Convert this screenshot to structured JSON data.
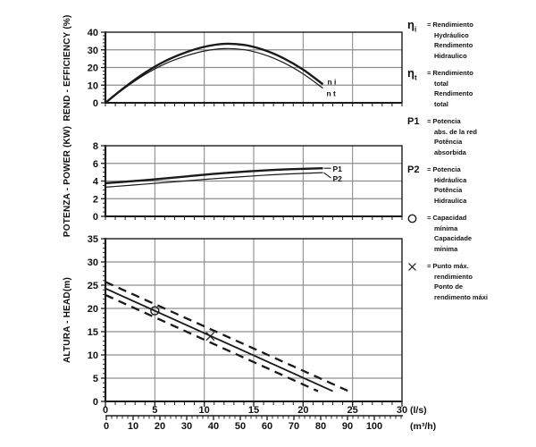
{
  "colors": {
    "curve": "#1a1a1a",
    "grid": "#8d8d8d",
    "axis": "#1a1a1a",
    "background": "#ffffff"
  },
  "units": {
    "flow_ls": "(l/s)",
    "flow_m3h": "(m³/h)"
  },
  "chart_data": [
    {
      "id": "efficiency",
      "type": "line",
      "title": "",
      "ylabel": "REND - EFFICIENCY (%)",
      "xlabel": "",
      "xlim": [
        0,
        30
      ],
      "ylim": [
        0,
        40
      ],
      "yticks": [
        0,
        10,
        20,
        30,
        40
      ],
      "y_minor_step": 2,
      "x_gridlines": [
        5,
        10,
        15,
        20,
        25
      ],
      "x_minor_step": 1,
      "series": [
        {
          "name": "eta-hydraulic",
          "label": "n i",
          "style": "thick",
          "points": [
            [
              0,
              0
            ],
            [
              2,
              9
            ],
            [
              4,
              17
            ],
            [
              6,
              23.5
            ],
            [
              8,
              28.3
            ],
            [
              10,
              31.7
            ],
            [
              12,
              33.4
            ],
            [
              14,
              32.8
            ],
            [
              16,
              30
            ],
            [
              18,
              25.3
            ],
            [
              20,
              18.8
            ],
            [
              22,
              10.5
            ]
          ]
        },
        {
          "name": "eta-total",
          "label": "n t",
          "style": "thin",
          "points": [
            [
              0,
              0
            ],
            [
              2,
              8.5
            ],
            [
              4,
              16
            ],
            [
              6,
              22
            ],
            [
              8,
              26.3
            ],
            [
              10,
              29.3
            ],
            [
              12,
              30.7
            ],
            [
              14,
              30.1
            ],
            [
              16,
              27.4
            ],
            [
              18,
              22.8
            ],
            [
              20,
              16.4
            ],
            [
              22,
              8.3
            ]
          ]
        }
      ]
    },
    {
      "id": "power",
      "type": "line",
      "title": "",
      "ylabel": "POTENZA - POWER (KW)",
      "xlabel": "",
      "xlim": [
        0,
        30
      ],
      "ylim": [
        0,
        8
      ],
      "yticks": [
        0,
        2,
        4,
        6,
        8
      ],
      "y_minor_step": 0.5,
      "x_gridlines": [
        5,
        10,
        15,
        20,
        25
      ],
      "x_minor_step": 1,
      "series": [
        {
          "name": "p1-absorbed-power",
          "label": "P1",
          "style": "thick",
          "points": [
            [
              0,
              3.75
            ],
            [
              4,
              4.1
            ],
            [
              8,
              4.5
            ],
            [
              12,
              4.9
            ],
            [
              16,
              5.2
            ],
            [
              19,
              5.35
            ],
            [
              22,
              5.45
            ]
          ]
        },
        {
          "name": "p2-hydraulic-power",
          "label": "P2",
          "style": "thin",
          "points": [
            [
              0,
              3.3
            ],
            [
              4,
              3.65
            ],
            [
              8,
              4.0
            ],
            [
              12,
              4.35
            ],
            [
              16,
              4.65
            ],
            [
              19,
              4.82
            ],
            [
              22,
              4.95
            ]
          ]
        }
      ]
    },
    {
      "id": "head",
      "type": "line",
      "title": "",
      "ylabel": "ALTURA - HEAD(m)",
      "xlabel": "",
      "xlim": [
        0,
        30
      ],
      "ylim": [
        0,
        35
      ],
      "yticks": [
        0,
        5,
        10,
        15,
        20,
        25,
        30,
        35
      ],
      "y_minor_step": 1,
      "xticks": [
        0,
        5,
        10,
        15,
        20,
        25,
        30
      ],
      "x_gridlines": [
        5,
        10,
        15,
        20,
        25
      ],
      "x_minor_step": 1,
      "series": [
        {
          "name": "head-upper-tolerance",
          "style": "dashed",
          "points": [
            [
              0,
              25.7
            ],
            [
              24.5,
              2.3
            ]
          ]
        },
        {
          "name": "head-nominal",
          "style": "solid",
          "points": [
            [
              0,
              24.3
            ],
            [
              23,
              2.2
            ]
          ]
        },
        {
          "name": "head-lower-tolerance",
          "style": "dashed",
          "points": [
            [
              0,
              22.9
            ],
            [
              21.5,
              2.2
            ]
          ]
        }
      ],
      "markers": [
        {
          "type": "circle",
          "x": 5,
          "y": 19.5
        },
        {
          "type": "x",
          "x": 10.6,
          "y": 14.0
        }
      ]
    }
  ],
  "secondary_axis": {
    "label": "(m³/h)",
    "ticks": [
      0,
      10,
      20,
      30,
      40,
      50,
      60,
      70,
      80,
      90,
      100
    ],
    "minor_step": 2
  },
  "legend": {
    "items": [
      {
        "id": "eta-i",
        "symbol": "η",
        "subscript": "i",
        "eq": "=",
        "lines": [
          "Rendimiento",
          "Hydráulico",
          "Rendimento",
          "Hidraulico"
        ]
      },
      {
        "id": "eta-t",
        "symbol": "η",
        "subscript": "t",
        "eq": "=",
        "lines": [
          "Rendimiento",
          "total",
          "Rendimento",
          "total"
        ]
      },
      {
        "id": "p1",
        "symbol": "P1",
        "subscript": "",
        "eq": "=",
        "lines": [
          "Potencia",
          "abs. de la red",
          "Potência",
          "absorbida"
        ]
      },
      {
        "id": "p2",
        "symbol": "P2",
        "subscript": "",
        "eq": "=",
        "lines": [
          "Potencia",
          "Hidráulica",
          "Potência",
          "Hidraulica"
        ]
      },
      {
        "id": "min-capacity",
        "icon": "circle",
        "eq": "=",
        "lines": [
          "Capacidad",
          "mínima",
          "Capacidade",
          "mínima"
        ]
      },
      {
        "id": "max-efficiency-point",
        "icon": "x",
        "eq": "=",
        "lines": [
          "Punto máx.",
          "rendimiento",
          "Ponto de",
          "rendimento máxi"
        ]
      }
    ]
  }
}
